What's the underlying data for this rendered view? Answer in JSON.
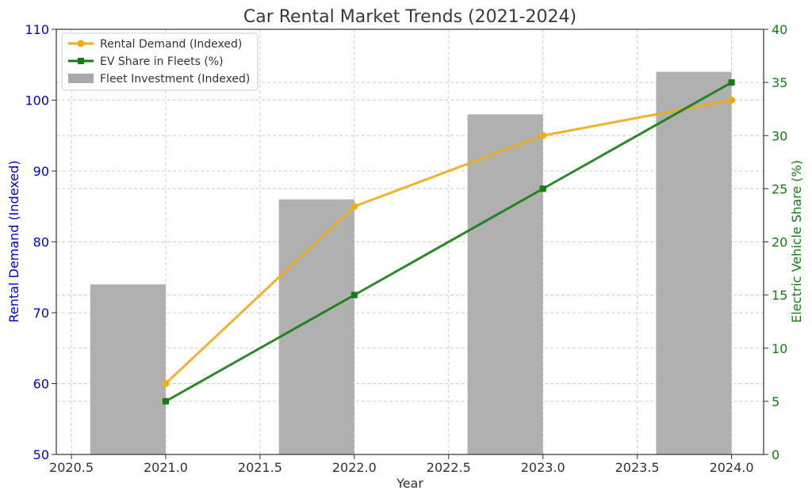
{
  "chart_data": {
    "type": "bar+line",
    "title": "Car Rental Market Trends (2021-2024)",
    "xlabel": "Year",
    "ylabel_left": "Rental Demand (Indexed)",
    "ylabel_right": "Electric Vehicle Share (%)",
    "x_ticks": [
      "2020.5",
      "2021.0",
      "2021.5",
      "2022.0",
      "2022.5",
      "2023.0",
      "2023.5",
      "2024.0"
    ],
    "x_tick_values": [
      2020.5,
      2021.0,
      2021.5,
      2022.0,
      2022.5,
      2023.0,
      2023.5,
      2024.0
    ],
    "xlim": [
      2020.42,
      2024.17
    ],
    "y_left_ticks": [
      "50",
      "60",
      "70",
      "80",
      "90",
      "100",
      "110"
    ],
    "y_left_tick_values": [
      50,
      60,
      70,
      80,
      90,
      100,
      110
    ],
    "ylim_left": [
      50,
      110
    ],
    "y_right_ticks": [
      "0",
      "5",
      "10",
      "15",
      "20",
      "25",
      "30",
      "35",
      "40"
    ],
    "y_right_tick_values": [
      0,
      5,
      10,
      15,
      20,
      25,
      30,
      35,
      40
    ],
    "ylim_right": [
      0,
      40
    ],
    "x": [
      2021,
      2022,
      2023,
      2024
    ],
    "grid": true,
    "legend_position": "top-left",
    "series": [
      {
        "name": "Rental Demand (Indexed)",
        "kind": "line",
        "axis": "left",
        "marker": "circle",
        "color": "#f0ab17",
        "values": [
          60,
          85,
          95,
          100
        ]
      },
      {
        "name": "EV Share in Fleets (%)",
        "kind": "line",
        "axis": "right",
        "marker": "square",
        "color": "#137d13",
        "values": [
          5,
          15,
          25,
          35
        ]
      },
      {
        "name": "Fleet Investment (Indexed)",
        "kind": "bar",
        "axis": "left",
        "color": "#a9a9a9",
        "bar_width_years": 0.4,
        "bar_align": "edge-left",
        "values": [
          74,
          86,
          98,
          104
        ]
      }
    ],
    "colors": {
      "left_axis": "#0000cc",
      "right_axis": "#108010",
      "text": "#333333"
    }
  }
}
